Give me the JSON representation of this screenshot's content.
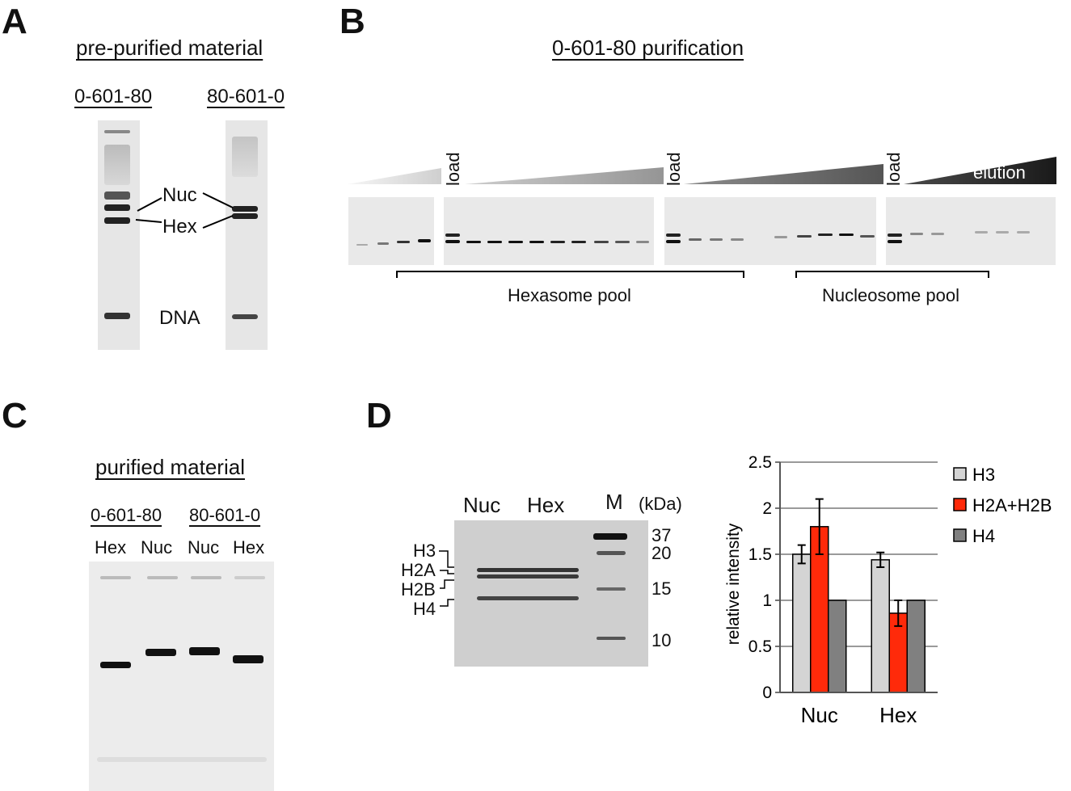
{
  "panels": {
    "A": {
      "label": "A",
      "title": "pre-purified material",
      "lane1": "0-601-80",
      "lane2": "80-601-0",
      "nuc": "Nuc",
      "hex": "Hex",
      "dna": "DNA"
    },
    "B": {
      "label": "B",
      "title": "0-601-80 purification",
      "load1": "load",
      "load2": "load",
      "load3": "load",
      "elution": "elution",
      "hexpool": "Hexasome pool",
      "nucpool": "Nucleosome pool"
    },
    "C": {
      "label": "C",
      "title": "purified material",
      "group1": "0-601-80",
      "group2": "80-601-0",
      "lanes": [
        "Hex",
        "Nuc",
        "Nuc",
        "Hex"
      ]
    },
    "D": {
      "label": "D",
      "lane_nuc": "Nuc",
      "lane_hex": "Hex",
      "lane_m": "M",
      "unit": "(kDa)",
      "markers": [
        "37",
        "20",
        "15",
        "10"
      ],
      "histones": [
        "H3",
        "H2A",
        "H2B",
        "H4"
      ]
    }
  },
  "chart_data": {
    "type": "bar",
    "categories": [
      "Nuc",
      "Hex"
    ],
    "series": [
      {
        "name": "H3",
        "values": [
          1.5,
          1.44
        ],
        "errors": [
          0.1,
          0.08
        ],
        "color": "#d4d4d4"
      },
      {
        "name": "H2A+H2B",
        "values": [
          1.8,
          0.86
        ],
        "errors": [
          0.3,
          0.14
        ],
        "color": "#ff2a0a"
      },
      {
        "name": "H4",
        "values": [
          1.0,
          1.0
        ],
        "errors": [
          0,
          0
        ],
        "color": "#808080"
      }
    ],
    "ylabel": "relative intensity",
    "ylim": [
      0,
      2.5
    ],
    "yticks": [
      "0",
      "0.5",
      "1",
      "1.5",
      "2",
      "2.5"
    ],
    "grid": true,
    "legend": "right"
  }
}
